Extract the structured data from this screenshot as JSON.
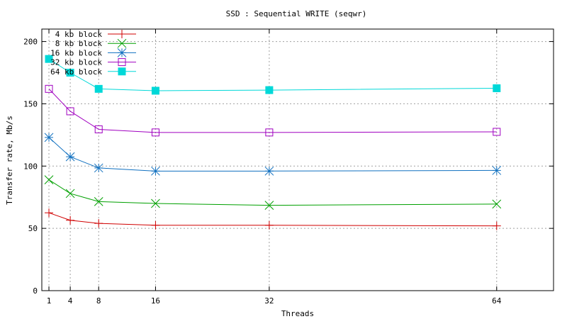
{
  "chart_data": {
    "type": "line",
    "title": "SSD : Sequential WRITE (seqwr)",
    "xlabel": "Threads",
    "ylabel": "Transfer rate, Mb/s",
    "xlim": [
      0,
      72
    ],
    "ylim": [
      0,
      210
    ],
    "xticks": [
      1,
      4,
      8,
      16,
      32,
      64
    ],
    "yticks": [
      0,
      50,
      100,
      150,
      200
    ],
    "grid": true,
    "legend_position": "top-left",
    "x": [
      1,
      4,
      8,
      16,
      32,
      64
    ],
    "series": [
      {
        "name": "4 kb block",
        "color": "#d00000",
        "marker": "plus",
        "values": [
          62.5,
          56.5,
          54,
          52.5,
          52.5,
          52
        ]
      },
      {
        "name": "8 kb block",
        "color": "#00a000",
        "marker": "cross",
        "values": [
          89,
          78,
          71.5,
          70,
          68.5,
          69.5
        ]
      },
      {
        "name": "16 kb block",
        "color": "#1070c0",
        "marker": "star",
        "values": [
          123,
          107.5,
          98.5,
          96,
          96,
          96.5
        ]
      },
      {
        "name": "32 kb block",
        "color": "#a000c0",
        "marker": "square-open",
        "values": [
          162,
          144,
          129.5,
          127,
          127,
          127.5
        ]
      },
      {
        "name": "64 kb block",
        "color": "#00d8d8",
        "marker": "square-filled",
        "values": [
          186,
          175,
          162,
          160.5,
          161,
          162.5
        ]
      }
    ]
  }
}
